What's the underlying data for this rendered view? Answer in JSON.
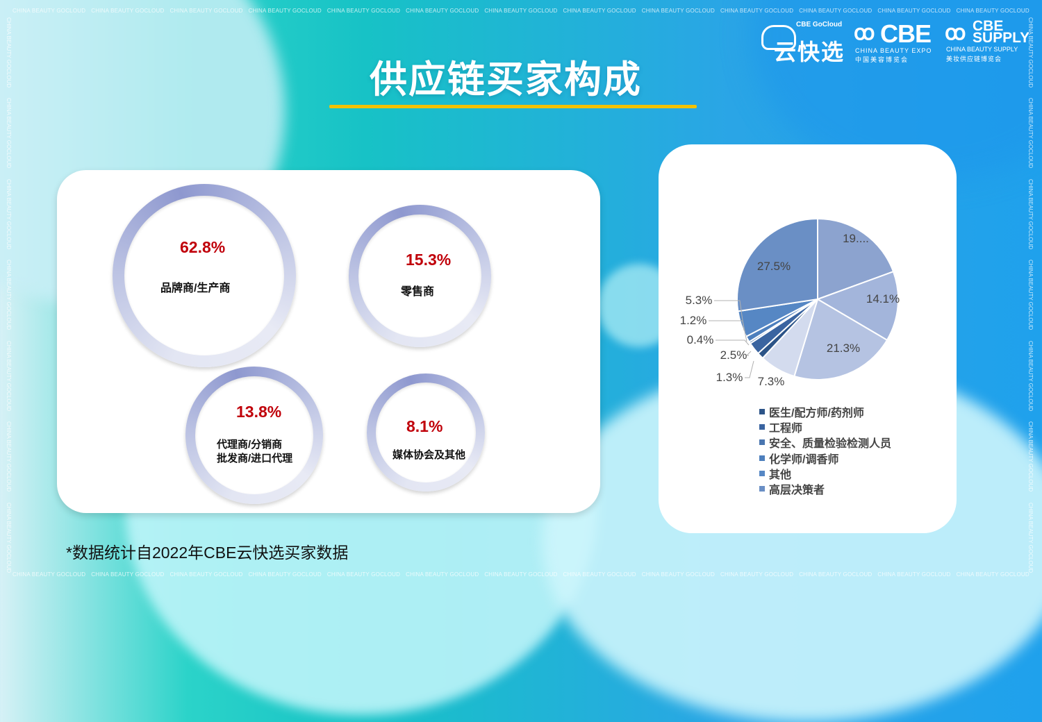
{
  "watermark": "CHINA BEAUTY GOCLOUD",
  "title": "供应链买家构成",
  "logos": {
    "gocloud_tag": "CBE GoCloud",
    "gocloud_cn": "云快选",
    "cbe_big": "CBE",
    "cbe_en": "CHINA BEAUTY EXPO",
    "cbe_cn": "中国美容博览会",
    "supply_line1": "CBE",
    "supply_line2": "SUPPLY",
    "supply_en": "CHINA BEAUTY SUPPLY",
    "supply_cn": "美妆供应链博览会"
  },
  "buyer_types": [
    {
      "pct": "62.8%",
      "label": "品牌商/生产商"
    },
    {
      "pct": "15.3%",
      "label": "零售商"
    },
    {
      "pct": "13.8%",
      "label_line1": "代理商/分销商",
      "label_line2": "批发商/进口代理"
    },
    {
      "pct": "8.1%",
      "label": "媒体协会及其他"
    }
  ],
  "footnote": "*数据统计自2022年CBE云快选买家数据",
  "chart_data": {
    "type": "pie",
    "slices": [
      {
        "label": "19....",
        "value": 19.5,
        "color": "#8ca3cf"
      },
      {
        "label": "14.1%",
        "value": 14.1,
        "color": "#a3b5db"
      },
      {
        "label": "21.3%",
        "value": 21.3,
        "color": "#b5c3e2"
      },
      {
        "label": "7.3%",
        "value": 7.3,
        "color": "#d3dbee"
      },
      {
        "label": "1.3%",
        "value": 1.3,
        "color": "#2c5488"
      },
      {
        "label": "2.5%",
        "value": 2.5,
        "color": "#3a64a0"
      },
      {
        "label": "0.4%",
        "value": 0.4,
        "color": "#4a76b0"
      },
      {
        "label": "1.2%",
        "value": 1.2,
        "color": "#4d7fbd"
      },
      {
        "label": "5.3%",
        "value": 5.3,
        "color": "#5687c4"
      },
      {
        "label": "27.5%",
        "value": 27.5,
        "color": "#6a8fc5"
      }
    ],
    "legend": [
      {
        "label": "医生/配方师/药剂师",
        "color": "#2c5488"
      },
      {
        "label": "工程师",
        "color": "#3a64a0"
      },
      {
        "label": "安全、质量检验检测人员",
        "color": "#4a76b0"
      },
      {
        "label": "化学师/调香师",
        "color": "#4d7fbd"
      },
      {
        "label": "其他",
        "color": "#5687c4"
      },
      {
        "label": "高层决策者",
        "color": "#6a8fc5"
      }
    ]
  }
}
